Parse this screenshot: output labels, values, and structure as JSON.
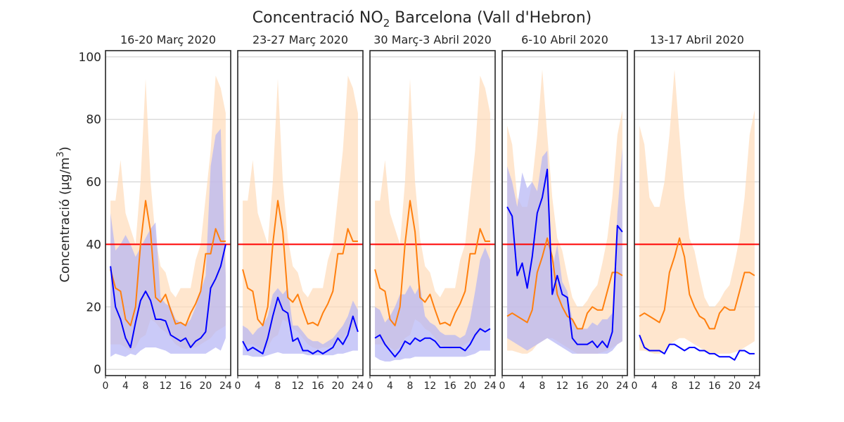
{
  "chart_data": {
    "type": "line",
    "title_prefix": "Concentració NO",
    "title_subscript": "2",
    "title_suffix": " Barcelona (Vall d'Hebron)",
    "ylabel_prefix": "Concentració (µg/m",
    "ylabel_superscript": "3",
    "ylabel_suffix": ")",
    "ylim": [
      -2,
      102
    ],
    "yticks": [
      0,
      20,
      40,
      60,
      80,
      100
    ],
    "xlim": [
      0,
      25
    ],
    "xticks": [
      0,
      4,
      8,
      12,
      16,
      20,
      24
    ],
    "grid": "horizontal",
    "limit_line": 40,
    "colors": {
      "current": "#0000ff",
      "historical": "#ff7f0e",
      "current_band": "#b4b4f5",
      "historical_band": "#ffdcb9",
      "limit": "#ff0000"
    },
    "panels": [
      {
        "title": "16-20 Març 2020",
        "x": [
          1,
          2,
          3,
          4,
          5,
          6,
          7,
          8,
          9,
          10,
          11,
          12,
          13,
          14,
          15,
          16,
          17,
          18,
          19,
          20,
          21,
          22,
          23,
          24
        ],
        "current": [
          33,
          20,
          16,
          10,
          7,
          15,
          22,
          25,
          22,
          16,
          16,
          15.5,
          11,
          10,
          9,
          10,
          7,
          9,
          10,
          12,
          26,
          29,
          33,
          40
        ],
        "current_low": [
          4,
          5,
          4.5,
          4,
          5,
          4.5,
          6,
          7,
          7,
          7,
          6.5,
          6,
          5,
          5,
          5,
          5,
          5,
          5,
          5,
          5,
          6,
          7,
          6,
          10
        ],
        "current_high": [
          50,
          38,
          40,
          43,
          40,
          36,
          39,
          42,
          45,
          47,
          23,
          21,
          20,
          16,
          15,
          14,
          16,
          20,
          25,
          30,
          65,
          75,
          77,
          30
        ],
        "historical": [
          32,
          26,
          25,
          16,
          14,
          20,
          40,
          54,
          44,
          23,
          21.5,
          24,
          19,
          14.5,
          15,
          14,
          18,
          21,
          25,
          37,
          37,
          45,
          41,
          41
        ],
        "historical_low": [
          8,
          8,
          8,
          7,
          6,
          7,
          10,
          11,
          16,
          15,
          13,
          12,
          10,
          8,
          7,
          6.5,
          7,
          7,
          8,
          9,
          10,
          12,
          13,
          14
        ],
        "historical_high": [
          54,
          54,
          67,
          50,
          45,
          40,
          60,
          93,
          60,
          42,
          33,
          31,
          25,
          23,
          26,
          26,
          26,
          35,
          40,
          55,
          70,
          94,
          90,
          82
        ]
      },
      {
        "title": "23-27 Març 2020",
        "x": [
          1,
          2,
          3,
          4,
          5,
          6,
          7,
          8,
          9,
          10,
          11,
          12,
          13,
          14,
          15,
          16,
          17,
          18,
          19,
          20,
          21,
          22,
          23,
          24
        ],
        "current": [
          9,
          6,
          7,
          6,
          5,
          10,
          17,
          23,
          19,
          18,
          9,
          10,
          6,
          6,
          5,
          6,
          5,
          6,
          7,
          10,
          8,
          11,
          17,
          12
        ],
        "current_low": [
          4.5,
          4.5,
          4,
          4,
          4,
          4.5,
          5,
          5.5,
          5,
          5,
          5,
          5,
          5,
          4.5,
          4.5,
          4.5,
          4.5,
          4.5,
          4.5,
          5,
          5,
          5.5,
          6,
          6
        ],
        "current_high": [
          14,
          13,
          11,
          13,
          14,
          17,
          24,
          26,
          24,
          26,
          14,
          14,
          12,
          10,
          9,
          9,
          8,
          9,
          10,
          12,
          14,
          17,
          22,
          19
        ],
        "historical": [
          32,
          26,
          25,
          16,
          14,
          20,
          40,
          54,
          44,
          23,
          21.5,
          24,
          19,
          14.5,
          15,
          14,
          18,
          21,
          25,
          37,
          37,
          45,
          41,
          41
        ],
        "historical_low": [
          8,
          8,
          8,
          7,
          6,
          7,
          10,
          11,
          16,
          15,
          13,
          12,
          10,
          8,
          7,
          6.5,
          7,
          7,
          8,
          9,
          10,
          12,
          13,
          14
        ],
        "historical_high": [
          54,
          54,
          67,
          50,
          45,
          40,
          60,
          93,
          60,
          42,
          33,
          31,
          25,
          23,
          26,
          26,
          26,
          35,
          40,
          55,
          70,
          94,
          90,
          82
        ]
      },
      {
        "title": "30 Març-3 Abril 2020",
        "x": [
          1,
          2,
          3,
          4,
          5,
          6,
          7,
          8,
          9,
          10,
          11,
          12,
          13,
          14,
          15,
          16,
          17,
          18,
          19,
          20,
          21,
          22,
          23,
          24
        ],
        "current": [
          10,
          11,
          8,
          6,
          4,
          6,
          9,
          8,
          10,
          9,
          10,
          10,
          9,
          7,
          7,
          7,
          7,
          7,
          6,
          8,
          11,
          13,
          12,
          13
        ],
        "current_low": [
          4,
          3,
          2.5,
          2.5,
          3,
          3,
          3.5,
          3.5,
          4,
          4,
          4,
          4,
          4,
          4,
          4,
          4,
          4,
          4,
          4,
          4.5,
          5,
          6,
          6,
          6
        ],
        "current_high": [
          20,
          19,
          15,
          17,
          20,
          24,
          24,
          27,
          24,
          27,
          17,
          15,
          14,
          12,
          11,
          11,
          11,
          10,
          11,
          16,
          25,
          35,
          39,
          35
        ],
        "historical": [
          32,
          26,
          25,
          16,
          14,
          20,
          40,
          54,
          44,
          23,
          21.5,
          24,
          19,
          14.5,
          15,
          14,
          18,
          21,
          25,
          37,
          37,
          45,
          41,
          41
        ],
        "historical_low": [
          8,
          8,
          8,
          7,
          6,
          7,
          10,
          11,
          16,
          15,
          13,
          12,
          10,
          8,
          7,
          6.5,
          7,
          7,
          8,
          9,
          10,
          12,
          13,
          14
        ],
        "historical_high": [
          54,
          54,
          67,
          50,
          45,
          40,
          60,
          93,
          60,
          42,
          33,
          31,
          25,
          23,
          26,
          26,
          26,
          35,
          40,
          55,
          70,
          94,
          90,
          82
        ]
      },
      {
        "title": "6-10 Abril 2020",
        "x": [
          1,
          2,
          3,
          4,
          5,
          6,
          7,
          8,
          9,
          10,
          11,
          12,
          13,
          14,
          15,
          16,
          17,
          18,
          19,
          20,
          21,
          22,
          23,
          24
        ],
        "current": [
          52,
          49,
          30,
          34,
          26,
          36,
          50,
          55,
          64,
          24,
          30,
          24,
          23,
          10,
          8,
          8,
          8,
          9,
          7,
          9,
          7,
          12,
          46,
          44
        ],
        "current_low": [
          10,
          9,
          8,
          7,
          6,
          7,
          8,
          9,
          10,
          9,
          8,
          7,
          6,
          5,
          5,
          5,
          5,
          5,
          5,
          5,
          5,
          6,
          8,
          9
        ],
        "current_high": [
          65,
          60,
          52,
          63,
          58,
          60,
          57,
          68,
          70,
          32,
          40,
          28,
          25,
          16,
          13,
          13,
          13,
          15,
          14,
          16,
          16,
          18,
          50,
          71
        ],
        "historical": [
          17,
          18,
          17,
          16,
          15,
          19,
          31,
          36,
          42,
          36,
          24,
          20,
          17,
          16,
          13,
          13,
          18,
          20,
          19,
          19,
          25,
          31,
          31,
          30
        ],
        "historical_low": [
          6,
          6,
          5.5,
          5,
          5,
          6,
          8,
          9,
          10,
          10,
          9,
          8,
          7,
          6,
          5,
          5,
          5,
          5,
          5,
          5.5,
          6,
          7,
          8,
          9
        ],
        "historical_high": [
          78,
          72,
          55,
          52,
          52,
          60,
          75,
          96,
          75,
          55,
          42,
          38,
          30,
          23,
          20,
          20,
          22,
          25,
          27,
          34,
          42,
          55,
          75,
          83
        ]
      },
      {
        "title": "13-17 Abril 2020",
        "x": [
          1,
          2,
          3,
          4,
          5,
          6,
          7,
          8,
          9,
          10,
          11,
          12,
          13,
          14,
          15,
          16,
          17,
          18,
          19,
          20,
          21,
          22,
          23,
          24
        ],
        "current": [
          11,
          7,
          6,
          6,
          6,
          5,
          8,
          8,
          7,
          6,
          7,
          7,
          6,
          6,
          5,
          5,
          4,
          4,
          4,
          3,
          6,
          6,
          5,
          5
        ],
        "historical": [
          17,
          18,
          17,
          16,
          15,
          19,
          31,
          36,
          42,
          36,
          24,
          20,
          17,
          16,
          13,
          13,
          18,
          20,
          19,
          19,
          25,
          31,
          31,
          30
        ],
        "historical_low": [
          6,
          6,
          5.5,
          5,
          5,
          6,
          8,
          9,
          10,
          10,
          9,
          8,
          7,
          6,
          5,
          5,
          5,
          5,
          5,
          5.5,
          6,
          7,
          8,
          9
        ],
        "historical_high": [
          78,
          72,
          55,
          52,
          52,
          60,
          75,
          96,
          75,
          55,
          42,
          38,
          30,
          23,
          20,
          20,
          22,
          25,
          27,
          34,
          42,
          55,
          75,
          83
        ]
      }
    ]
  }
}
